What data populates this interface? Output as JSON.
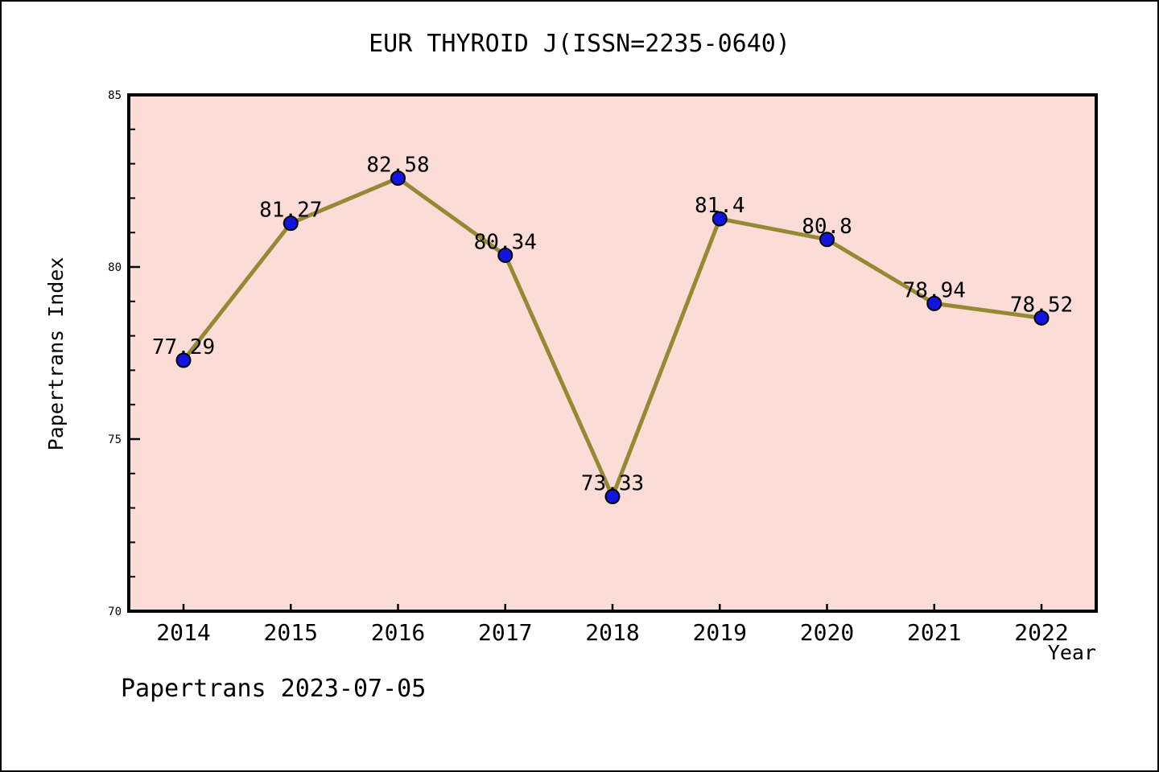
{
  "footer": "Papertrans 2023-07-05",
  "chart_data": {
    "type": "line",
    "title": "EUR THYROID J(ISSN=2235-0640)",
    "xlabel": "Year",
    "ylabel": "Papertrans Index",
    "categories": [
      "2014",
      "2015",
      "2016",
      "2017",
      "2018",
      "2019",
      "2020",
      "2021",
      "2022"
    ],
    "series": [
      {
        "name": "Papertrans Index",
        "values": [
          77.29,
          81.27,
          82.58,
          80.34,
          73.33,
          81.4,
          80.8,
          78.94,
          78.52
        ],
        "point_labels": [
          "77.29",
          "81.27",
          "82.58",
          "80.34",
          "73.33",
          "81.4",
          "80.8",
          "78.94",
          "78.52"
        ]
      }
    ],
    "ylim": [
      70,
      85
    ],
    "yticks": [
      70,
      75,
      80,
      85
    ],
    "minor_tick_interval": 1,
    "grid": false,
    "legend": null,
    "colors": {
      "plot_bg": "#fbdcd7",
      "line": "#958934",
      "marker": "#1414e0",
      "marker_edge": "#000000",
      "axis": "#000000",
      "text": "#000000",
      "page_bg": "#ffffff"
    }
  }
}
